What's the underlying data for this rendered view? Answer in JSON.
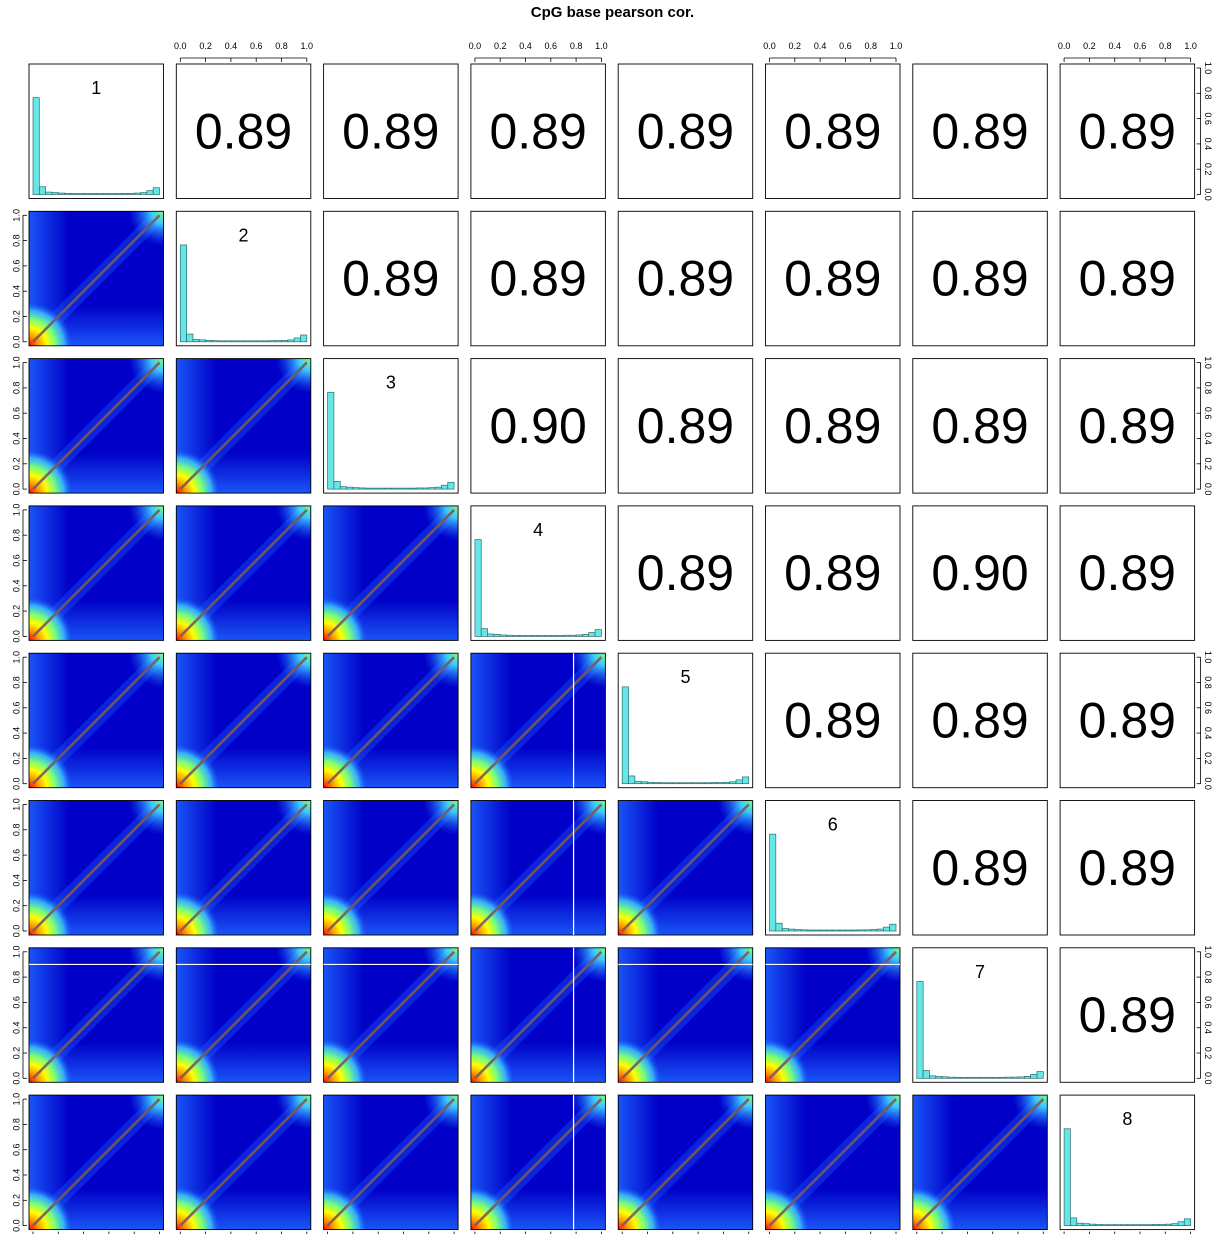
{
  "chart_data": {
    "type": "scatter",
    "title": "CpG base pearson cor.",
    "variables": [
      "1",
      "2",
      "3",
      "4",
      "5",
      "6",
      "7",
      "8"
    ],
    "correlation_matrix": [
      [
        null,
        0.89,
        0.89,
        0.89,
        0.89,
        0.89,
        0.89,
        0.89
      ],
      [
        null,
        null,
        0.89,
        0.89,
        0.89,
        0.89,
        0.89,
        0.89
      ],
      [
        null,
        null,
        null,
        0.9,
        0.89,
        0.89,
        0.89,
        0.89
      ],
      [
        null,
        null,
        null,
        null,
        0.89,
        0.89,
        0.9,
        0.89
      ],
      [
        null,
        null,
        null,
        null,
        null,
        0.89,
        0.89,
        0.89
      ],
      [
        null,
        null,
        null,
        null,
        null,
        null,
        0.89,
        0.89
      ],
      [
        null,
        null,
        null,
        null,
        null,
        null,
        null,
        0.89
      ],
      [
        null,
        null,
        null,
        null,
        null,
        null,
        null,
        null
      ]
    ],
    "correlation_labels": [
      [
        null,
        "0.89",
        "0.89",
        "0.89",
        "0.89",
        "0.89",
        "0.89",
        "0.89"
      ],
      [
        null,
        null,
        "0.89",
        "0.89",
        "0.89",
        "0.89",
        "0.89",
        "0.89"
      ],
      [
        null,
        null,
        null,
        "0.90",
        "0.89",
        "0.89",
        "0.89",
        "0.89"
      ],
      [
        null,
        null,
        null,
        null,
        "0.89",
        "0.89",
        "0.90",
        "0.89"
      ],
      [
        null,
        null,
        null,
        null,
        null,
        "0.89",
        "0.89",
        "0.89"
      ],
      [
        null,
        null,
        null,
        null,
        null,
        null,
        "0.89",
        "0.89"
      ],
      [
        null,
        null,
        null,
        null,
        null,
        null,
        null,
        "0.89"
      ],
      [
        null,
        null,
        null,
        null,
        null,
        null,
        null,
        null
      ]
    ],
    "histogram": {
      "bins": [
        0.0,
        0.05,
        0.1,
        0.15,
        0.2,
        0.25,
        0.3,
        0.35,
        0.4,
        0.45,
        0.5,
        0.55,
        0.6,
        0.65,
        0.7,
        0.75,
        0.8,
        0.85,
        0.9,
        0.95,
        1.0
      ],
      "relative_heights": [
        1.0,
        0.08,
        0.025,
        0.02,
        0.015,
        0.012,
        0.01,
        0.01,
        0.01,
        0.01,
        0.01,
        0.01,
        0.01,
        0.01,
        0.012,
        0.012,
        0.015,
        0.02,
        0.04,
        0.07
      ]
    },
    "axis_ticks": [
      "0.0",
      "0.2",
      "0.4",
      "0.6",
      "0.8",
      "1.0"
    ],
    "xlim": [
      0,
      1
    ],
    "ylim": [
      0,
      1
    ],
    "density_colormap": [
      "#0000c8",
      "#1e64ff",
      "#3cc8ff",
      "#78ff78",
      "#ffff00",
      "#ff9600",
      "#ff0000"
    ],
    "diagonal_line_color": "#7a5a5a",
    "histogram_fill": "#66e6e6",
    "reference_lines": [
      {
        "panel": [
          7,
          1
        ],
        "orientation": "horizontal",
        "value": 0.9
      },
      {
        "panel": [
          7,
          2
        ],
        "orientation": "horizontal",
        "value": 0.9
      },
      {
        "panel": [
          7,
          3
        ],
        "orientation": "horizontal",
        "value": 0.9
      },
      {
        "panel": [
          7,
          5
        ],
        "orientation": "horizontal",
        "value": 0.9
      },
      {
        "panel": [
          7,
          6
        ],
        "orientation": "horizontal",
        "value": 0.9
      },
      {
        "panel": [
          5,
          4
        ],
        "orientation": "vertical",
        "value": 0.78
      },
      {
        "panel": [
          6,
          4
        ],
        "orientation": "vertical",
        "value": 0.78
      },
      {
        "panel": [
          7,
          4
        ],
        "orientation": "vertical",
        "value": 0.78
      },
      {
        "panel": [
          8,
          4
        ],
        "orientation": "vertical",
        "value": 0.78
      }
    ]
  }
}
